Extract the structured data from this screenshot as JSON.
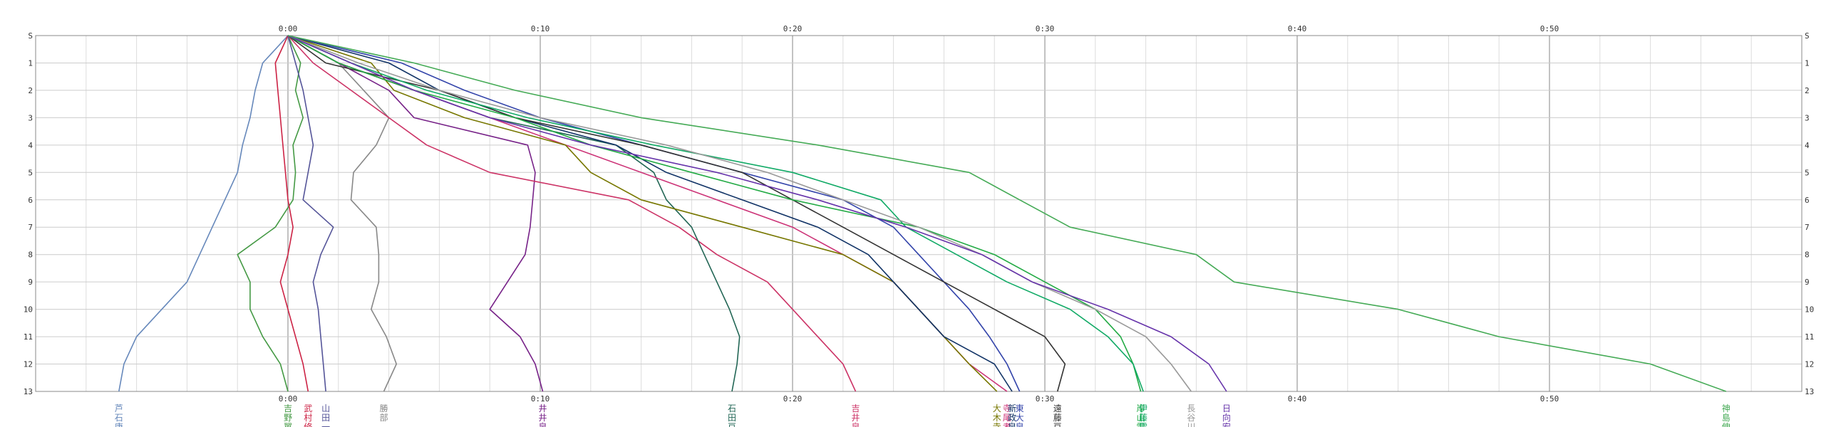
{
  "chart_data": {
    "type": "line",
    "title": "",
    "xlabel": "",
    "ylabel": "",
    "x_unit": "minutes",
    "xlim": [
      -10,
      60
    ],
    "x_ticks": [
      {
        "value": 0,
        "label": "0:00"
      },
      {
        "value": 10,
        "label": "0:10"
      },
      {
        "value": 20,
        "label": "0:20"
      },
      {
        "value": 30,
        "label": "0:30"
      },
      {
        "value": 40,
        "label": "0:40"
      },
      {
        "value": 50,
        "label": "0:50"
      }
    ],
    "y_ticks": [
      {
        "value": 0,
        "label": "S"
      },
      {
        "value": 1,
        "label": "1"
      },
      {
        "value": 2,
        "label": "2"
      },
      {
        "value": 3,
        "label": "3"
      },
      {
        "value": 4,
        "label": "4"
      },
      {
        "value": 5,
        "label": "5"
      },
      {
        "value": 6,
        "label": "6"
      },
      {
        "value": 7,
        "label": "7"
      },
      {
        "value": 8,
        "label": "8"
      },
      {
        "value": 9,
        "label": "9"
      },
      {
        "value": 10,
        "label": "10"
      },
      {
        "value": 11,
        "label": "11"
      },
      {
        "value": 12,
        "label": "12"
      },
      {
        "value": 13,
        "label": "13"
      }
    ],
    "ylim": [
      0,
      13
    ],
    "grid": true,
    "legend": "bottom",
    "series": [
      {
        "name": "芦石康",
        "color": "#6688bb",
        "points": [
          [
            0,
            0
          ],
          [
            -1,
            1
          ],
          [
            -1.3,
            2
          ],
          [
            -1.5,
            3
          ],
          [
            -1.8,
            4
          ],
          [
            -2,
            5
          ],
          [
            -2.5,
            6
          ],
          [
            -3,
            7
          ],
          [
            -3.5,
            8
          ],
          [
            -4,
            9
          ],
          [
            -5,
            10
          ],
          [
            -6,
            11
          ],
          [
            -6.5,
            12
          ],
          [
            -6.7,
            13
          ]
        ]
      },
      {
        "name": "吉野翼",
        "color": "#449944",
        "points": [
          [
            0,
            0
          ],
          [
            0.5,
            1
          ],
          [
            0.3,
            2
          ],
          [
            0.6,
            3
          ],
          [
            0.2,
            4
          ],
          [
            0.3,
            5
          ],
          [
            0.2,
            6
          ],
          [
            -0.5,
            7
          ],
          [
            -2,
            8
          ],
          [
            -1.5,
            9
          ],
          [
            -1.5,
            10
          ],
          [
            -1,
            11
          ],
          [
            -0.3,
            12
          ],
          [
            0,
            13
          ]
        ]
      },
      {
        "name": "武村修",
        "color": "#cc2244",
        "points": [
          [
            0,
            0
          ],
          [
            -0.5,
            1
          ],
          [
            -0.4,
            2
          ],
          [
            -0.3,
            3
          ],
          [
            -0.2,
            4
          ],
          [
            -0.1,
            5
          ],
          [
            0,
            6
          ],
          [
            0.2,
            7
          ],
          [
            0,
            8
          ],
          [
            -0.3,
            9
          ],
          [
            0,
            10
          ],
          [
            0.3,
            11
          ],
          [
            0.6,
            12
          ],
          [
            0.8,
            13
          ]
        ]
      },
      {
        "name": "山田一",
        "color": "#555599",
        "points": [
          [
            0,
            0
          ],
          [
            0.3,
            1
          ],
          [
            0.6,
            2
          ],
          [
            0.8,
            3
          ],
          [
            1,
            4
          ],
          [
            0.8,
            5
          ],
          [
            0.6,
            6
          ],
          [
            1.8,
            7
          ],
          [
            1.3,
            8
          ],
          [
            1,
            9
          ],
          [
            1.2,
            10
          ],
          [
            1.3,
            11
          ],
          [
            1.4,
            12
          ],
          [
            1.5,
            13
          ]
        ]
      },
      {
        "name": "勝部",
        "color": "#888888",
        "points": [
          [
            0,
            0
          ],
          [
            2,
            1
          ],
          [
            3,
            2
          ],
          [
            4,
            3
          ],
          [
            3.5,
            4
          ],
          [
            2.6,
            5
          ],
          [
            2.5,
            6
          ],
          [
            3.5,
            7
          ],
          [
            3.6,
            8
          ],
          [
            3.6,
            9
          ],
          [
            3.3,
            10
          ],
          [
            3.9,
            11
          ],
          [
            4.3,
            12
          ],
          [
            3.8,
            13
          ]
        ]
      },
      {
        "name": "井井泉",
        "color": "#772288",
        "points": [
          [
            0,
            0
          ],
          [
            2,
            1
          ],
          [
            4,
            2
          ],
          [
            5,
            3
          ],
          [
            9.5,
            4
          ],
          [
            9.8,
            5
          ],
          [
            9.7,
            6
          ],
          [
            9.6,
            7
          ],
          [
            9.4,
            8
          ],
          [
            8.7,
            9
          ],
          [
            8,
            10
          ],
          [
            9.2,
            11
          ],
          [
            9.8,
            12
          ],
          [
            10.1,
            13
          ]
        ]
      },
      {
        "name": "吉井泉",
        "color": "#cc3366",
        "points": [
          [
            0,
            0
          ],
          [
            1,
            1
          ],
          [
            2.5,
            2
          ],
          [
            4,
            3
          ],
          [
            5.5,
            4
          ],
          [
            8,
            5
          ],
          [
            13.5,
            6
          ],
          [
            15.5,
            7
          ],
          [
            17,
            8
          ],
          [
            19,
            9
          ],
          [
            20,
            10
          ],
          [
            21,
            11
          ],
          [
            22,
            12
          ],
          [
            22.5,
            13
          ]
        ]
      },
      {
        "name": "石田豆",
        "color": "#226655",
        "points": [
          [
            0,
            0
          ],
          [
            2,
            1
          ],
          [
            5,
            2
          ],
          [
            8,
            3
          ],
          [
            13,
            4
          ],
          [
            14.5,
            5
          ],
          [
            15,
            6
          ],
          [
            16,
            7
          ],
          [
            16.5,
            8
          ],
          [
            17,
            9
          ],
          [
            17.5,
            10
          ],
          [
            17.9,
            11
          ],
          [
            17.8,
            12
          ],
          [
            17.6,
            13
          ]
        ]
      },
      {
        "name": "寺尾孝",
        "color": "#cc3377",
        "points": [
          [
            0,
            0
          ],
          [
            2,
            1
          ],
          [
            5,
            2
          ],
          [
            8,
            3
          ],
          [
            11,
            4
          ],
          [
            14,
            5
          ],
          [
            17,
            6
          ],
          [
            20,
            7
          ],
          [
            22,
            8
          ],
          [
            24,
            9
          ],
          [
            25,
            10
          ],
          [
            26,
            11
          ],
          [
            27,
            12
          ],
          [
            28.5,
            13
          ]
        ]
      },
      {
        "name": "大木寺",
        "color": "#777700",
        "points": [
          [
            0,
            0
          ],
          [
            3.3,
            1
          ],
          [
            4.2,
            2
          ],
          [
            7,
            3
          ],
          [
            11,
            4
          ],
          [
            12,
            5
          ],
          [
            14,
            6
          ],
          [
            18,
            7
          ],
          [
            22,
            8
          ],
          [
            24,
            9
          ],
          [
            25,
            10
          ],
          [
            26,
            11
          ],
          [
            27,
            12
          ],
          [
            28.1,
            13
          ]
        ]
      },
      {
        "name": "新政泉",
        "color": "#113366",
        "points": [
          [
            0,
            0
          ],
          [
            4,
            1
          ],
          [
            6,
            2
          ],
          [
            9,
            3
          ],
          [
            13,
            4
          ],
          [
            15,
            5
          ],
          [
            18,
            6
          ],
          [
            21,
            7
          ],
          [
            23,
            8
          ],
          [
            24,
            9
          ],
          [
            25,
            10
          ],
          [
            26,
            11
          ],
          [
            28,
            12
          ],
          [
            28.7,
            13
          ]
        ]
      },
      {
        "name": "東大泉",
        "color": "#3344aa",
        "points": [
          [
            0,
            0
          ],
          [
            4.5,
            1
          ],
          [
            7,
            2
          ],
          [
            10,
            3
          ],
          [
            14,
            4
          ],
          [
            18,
            5
          ],
          [
            22,
            6
          ],
          [
            24,
            7
          ],
          [
            25,
            8
          ],
          [
            26,
            9
          ],
          [
            27,
            10
          ],
          [
            27.8,
            11
          ],
          [
            28.5,
            12
          ],
          [
            29,
            13
          ]
        ]
      },
      {
        "name": "遠藤豆",
        "color": "#333333",
        "points": [
          [
            0,
            0
          ],
          [
            1.5,
            1
          ],
          [
            6,
            2
          ],
          [
            9,
            3
          ],
          [
            14,
            4
          ],
          [
            18,
            5
          ],
          [
            20,
            6
          ],
          [
            22,
            7
          ],
          [
            24,
            8
          ],
          [
            26,
            9
          ],
          [
            28,
            10
          ],
          [
            30,
            11
          ],
          [
            30.8,
            12
          ],
          [
            30.5,
            13
          ]
        ]
      },
      {
        "name": "岸山雷",
        "color": "#22aa44",
        "points": [
          [
            0,
            0
          ],
          [
            2,
            1
          ],
          [
            5,
            2
          ],
          [
            9,
            3
          ],
          [
            12,
            4
          ],
          [
            16,
            5
          ],
          [
            20,
            6
          ],
          [
            25,
            7
          ],
          [
            28,
            8
          ],
          [
            30,
            9
          ],
          [
            32,
            10
          ],
          [
            33,
            11
          ],
          [
            33.5,
            12
          ],
          [
            33.8,
            13
          ]
        ]
      },
      {
        "name": "伊藤雷",
        "color": "#11aa66",
        "points": [
          [
            0,
            0
          ],
          [
            2.5,
            1
          ],
          [
            5.5,
            2
          ],
          [
            9.5,
            3
          ],
          [
            14.5,
            4
          ],
          [
            20,
            5
          ],
          [
            23.5,
            6
          ],
          [
            24.5,
            7
          ],
          [
            26.5,
            8
          ],
          [
            28.5,
            9
          ],
          [
            31,
            10
          ],
          [
            32.5,
            11
          ],
          [
            33.5,
            12
          ],
          [
            33.9,
            13
          ]
        ]
      },
      {
        "name": "長谷川",
        "color": "#999999",
        "points": [
          [
            0,
            0
          ],
          [
            2.8,
            1
          ],
          [
            6,
            2
          ],
          [
            10,
            3
          ],
          [
            15,
            4
          ],
          [
            19,
            5
          ],
          [
            22,
            6
          ],
          [
            25,
            7
          ],
          [
            27.5,
            8
          ],
          [
            29.5,
            9
          ],
          [
            32,
            10
          ],
          [
            34,
            11
          ],
          [
            35,
            12
          ],
          [
            35.8,
            13
          ]
        ]
      },
      {
        "name": "日向宏",
        "color": "#6633aa",
        "points": [
          [
            0,
            0
          ],
          [
            2.5,
            1
          ],
          [
            5,
            2
          ],
          [
            8,
            3
          ],
          [
            12,
            4
          ],
          [
            17,
            5
          ],
          [
            21,
            6
          ],
          [
            24.5,
            7
          ],
          [
            27.5,
            8
          ],
          [
            29.5,
            9
          ],
          [
            32.5,
            10
          ],
          [
            35,
            11
          ],
          [
            36.5,
            12
          ],
          [
            37.2,
            13
          ]
        ]
      },
      {
        "name": "神島伸",
        "color": "#44aa55",
        "points": [
          [
            0,
            0
          ],
          [
            5,
            1
          ],
          [
            9,
            2
          ],
          [
            14,
            3
          ],
          [
            21,
            4
          ],
          [
            27,
            5
          ],
          [
            29,
            6
          ],
          [
            31,
            7
          ],
          [
            36,
            8
          ],
          [
            37.5,
            9
          ],
          [
            44,
            10
          ],
          [
            48,
            11
          ],
          [
            54,
            12
          ],
          [
            57,
            13
          ]
        ]
      }
    ]
  }
}
